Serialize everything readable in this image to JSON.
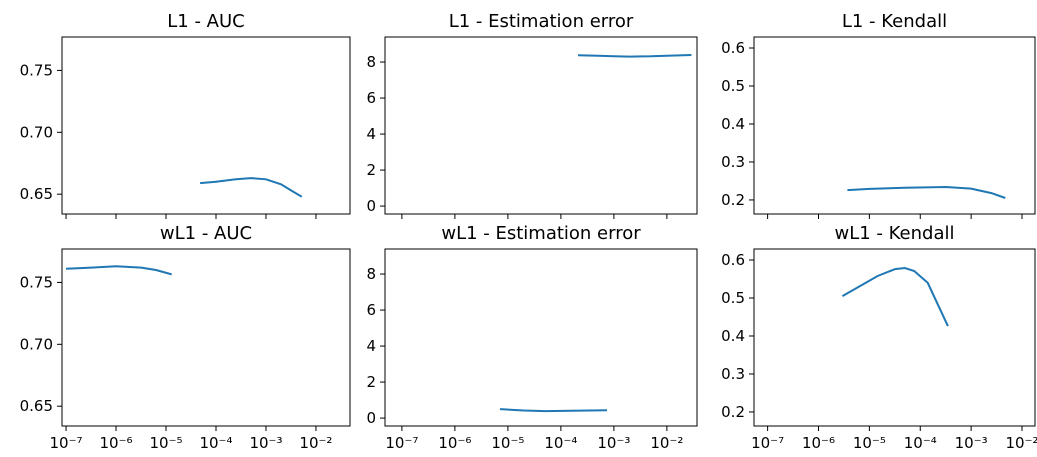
{
  "chart_data": [
    {
      "type": "line",
      "title": "L1 - AUC",
      "xscale": "log",
      "show_xticklabels": false,
      "x": [
        4.8e-05,
        0.0001,
        0.00025,
        0.0005,
        0.001,
        0.002,
        0.0032,
        0.0052
      ],
      "series": [
        {
          "color": "#1f77b4",
          "values": [
            0.659,
            0.66,
            0.662,
            0.663,
            0.662,
            0.658,
            0.653,
            0.648
          ]
        }
      ],
      "xlim": [
        8.3e-08,
        0.048
      ],
      "xticks": [
        1e-07,
        1e-06,
        1e-05,
        0.0001,
        0.001,
        0.01
      ],
      "ylim": [
        0.634,
        0.777
      ],
      "yticks": [
        0.65,
        {
          "value": 0.7,
          "label": "0.70"
        },
        0.75
      ]
    },
    {
      "type": "line",
      "title": "L1 - Estimation error",
      "xscale": "log",
      "show_xticklabels": false,
      "x": [
        0.00021,
        0.0005,
        0.001,
        0.002,
        0.005,
        0.01,
        0.029
      ],
      "series": [
        {
          "color": "#1f77b4",
          "values": [
            8.38,
            8.35,
            8.32,
            8.3,
            8.32,
            8.35,
            8.39
          ]
        }
      ],
      "xlim": [
        4.8e-08,
        0.037
      ],
      "xticks": [
        1e-07,
        1e-06,
        1e-05,
        0.0001,
        0.001,
        0.01
      ],
      "ylim": [
        -0.44,
        9.39
      ],
      "yticks": [
        0,
        2,
        4,
        6,
        8
      ]
    },
    {
      "type": "line",
      "title": "L1 - Kendall",
      "xscale": "log",
      "show_xticklabels": false,
      "x": [
        3.7e-06,
        1e-05,
        5e-05,
        0.00032,
        0.001,
        0.0025,
        0.0047
      ],
      "series": [
        {
          "color": "#1f77b4",
          "values": [
            0.226,
            0.229,
            0.232,
            0.234,
            0.23,
            0.218,
            0.205
          ]
        }
      ],
      "xlim": [
        5.4e-08,
        0.018
      ],
      "xticks": [
        1e-07,
        1e-06,
        1e-05,
        0.0001,
        0.001,
        0.01
      ],
      "ylim": [
        0.163,
        0.629
      ],
      "yticks": [
        0.2,
        0.3,
        0.4,
        0.5,
        0.6
      ]
    },
    {
      "type": "line",
      "title": "wL1 - AUC",
      "xscale": "log",
      "show_xticklabels": true,
      "x": [
        1e-07,
        3.2e-07,
        1e-06,
        3.2e-06,
        6.3e-06,
        1.3e-05
      ],
      "series": [
        {
          "color": "#1f77b4",
          "values": [
            0.761,
            0.762,
            0.763,
            0.762,
            0.76,
            0.7565
          ]
        }
      ],
      "xlim": [
        8.3e-08,
        0.048
      ],
      "xticks": [
        {
          "value": 1e-07,
          "label": "10⁻⁷"
        },
        {
          "value": 1e-06,
          "label": "10⁻⁶"
        },
        {
          "value": 1e-05,
          "label": "10⁻⁵"
        },
        {
          "value": 0.0001,
          "label": "10⁻⁴"
        },
        {
          "value": 0.001,
          "label": "10⁻³"
        },
        {
          "value": 0.01,
          "label": "10⁻²"
        }
      ],
      "ylim": [
        0.634,
        0.777
      ],
      "yticks": [
        0.65,
        {
          "value": 0.7,
          "label": "0.70"
        },
        0.75
      ]
    },
    {
      "type": "line",
      "title": "wL1 - Estimation error",
      "xscale": "log",
      "show_xticklabels": true,
      "x": [
        7.1e-06,
        2e-05,
        5e-05,
        0.00016,
        0.00074
      ],
      "series": [
        {
          "color": "#1f77b4",
          "values": [
            0.5,
            0.42,
            0.39,
            0.41,
            0.44
          ]
        }
      ],
      "xlim": [
        4.8e-08,
        0.037
      ],
      "xticks": [
        {
          "value": 1e-07,
          "label": "10⁻⁷"
        },
        {
          "value": 1e-06,
          "label": "10⁻⁶"
        },
        {
          "value": 1e-05,
          "label": "10⁻⁵"
        },
        {
          "value": 0.0001,
          "label": "10⁻⁴"
        },
        {
          "value": 0.001,
          "label": "10⁻³"
        },
        {
          "value": 0.01,
          "label": "10⁻²"
        }
      ],
      "ylim": [
        -0.44,
        9.39
      ],
      "yticks": [
        0,
        2,
        4,
        6,
        8
      ]
    },
    {
      "type": "line",
      "title": "wL1 - Kendall",
      "xscale": "log",
      "show_xticklabels": true,
      "x": [
        2.95e-06,
        1.45e-05,
        3.2e-05,
        5e-05,
        7.6e-05,
        0.00014,
        0.00035
      ],
      "series": [
        {
          "color": "#1f77b4",
          "values": [
            0.505,
            0.558,
            0.576,
            0.579,
            0.571,
            0.54,
            0.426
          ]
        }
      ],
      "xlim": [
        5.4e-08,
        0.018
      ],
      "xticks": [
        {
          "value": 1e-07,
          "label": "10⁻⁷"
        },
        {
          "value": 1e-06,
          "label": "10⁻⁶"
        },
        {
          "value": 1e-05,
          "label": "10⁻⁵"
        },
        {
          "value": 0.0001,
          "label": "10⁻⁴"
        },
        {
          "value": 0.001,
          "label": "10⁻³"
        },
        {
          "value": 0.01,
          "label": "10⁻²"
        }
      ],
      "ylim": [
        0.163,
        0.629
      ],
      "yticks": [
        0.2,
        0.3,
        0.4,
        0.5,
        0.6
      ]
    }
  ]
}
